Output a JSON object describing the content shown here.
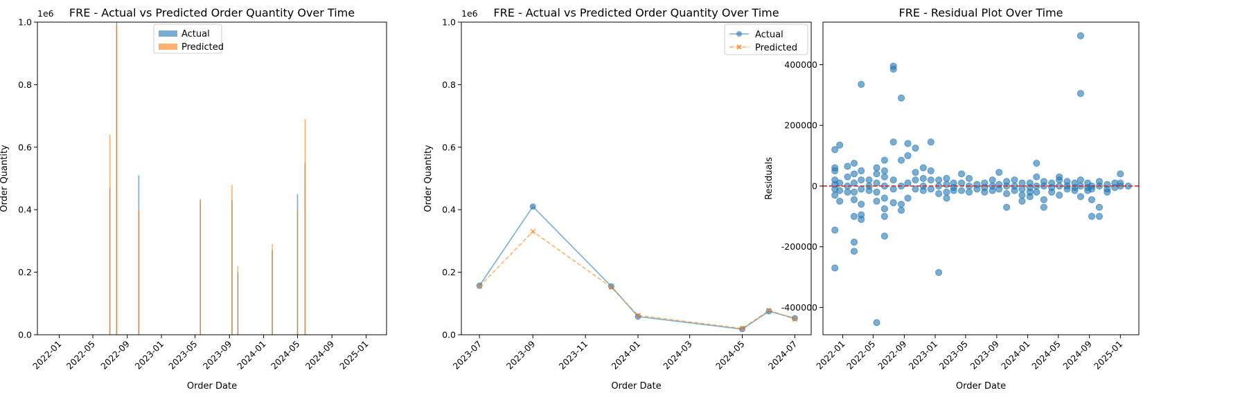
{
  "colors": {
    "actual": "#1f77b4",
    "predicted": "#ff7f0e",
    "zero_line": "#d62728"
  },
  "chart_data": [
    {
      "type": "bar",
      "title": "FRE - Actual vs Predicted Order Quantity Over Time",
      "xlabel": "Order Date",
      "ylabel": "Order Quantity",
      "y_offset_label": "1e6",
      "ylim": [
        0,
        1
      ],
      "yticks": [
        "0.0",
        "0.2",
        "0.4",
        "0.6",
        "0.8",
        "1.0"
      ],
      "xlim": [
        "2021-10-15",
        "2025-03-15"
      ],
      "xticks": [
        "2022-01",
        "2022-05",
        "2022-09",
        "2023-01",
        "2023-05",
        "2023-09",
        "2024-01",
        "2024-05",
        "2024-09",
        "2025-01"
      ],
      "legend_position": "top-center",
      "series": [
        {
          "name": "Actual",
          "points": [
            {
              "x": "2022-07-01",
              "y": 0.47
            },
            {
              "x": "2022-07-25",
              "y": 1.0
            },
            {
              "x": "2022-10-12",
              "y": 0.51
            },
            {
              "x": "2023-05-20",
              "y": 0.43
            },
            {
              "x": "2023-09-10",
              "y": 0.43
            },
            {
              "x": "2023-10-01",
              "y": 0.2
            },
            {
              "x": "2024-02-01",
              "y": 0.27
            },
            {
              "x": "2024-05-01",
              "y": 0.45
            },
            {
              "x": "2024-05-28",
              "y": 0.55
            }
          ]
        },
        {
          "name": "Predicted",
          "points": [
            {
              "x": "2022-07-01",
              "y": 0.64
            },
            {
              "x": "2022-07-25",
              "y": 0.99
            },
            {
              "x": "2022-10-12",
              "y": 0.4
            },
            {
              "x": "2023-05-20",
              "y": 0.435
            },
            {
              "x": "2023-09-10",
              "y": 0.48
            },
            {
              "x": "2023-10-01",
              "y": 0.22
            },
            {
              "x": "2024-02-01",
              "y": 0.29
            },
            {
              "x": "2024-05-01",
              "y": 0.4
            },
            {
              "x": "2024-05-28",
              "y": 0.69
            }
          ]
        }
      ]
    },
    {
      "type": "line",
      "title": "FRE - Actual vs Predicted Order Quantity Over Time",
      "xlabel": "Order Date",
      "ylabel": "Order Quantity",
      "y_offset_label": "1e6",
      "ylim": [
        0,
        1
      ],
      "yticks": [
        "0.0",
        "0.2",
        "0.4",
        "0.6",
        "0.8",
        "1.0"
      ],
      "xlim": [
        "2023-06-10",
        "2024-07-20"
      ],
      "xticks": [
        "2023-07",
        "2023-09",
        "2023-11",
        "2024-01",
        "2024-03",
        "2024-05",
        "2024-07"
      ],
      "legend_position": "top-right",
      "series": [
        {
          "name": "Actual",
          "marker": "circle",
          "points": [
            {
              "x": "2023-07-01",
              "y": 0.157
            },
            {
              "x": "2023-09-01",
              "y": 0.41
            },
            {
              "x": "2023-12-01",
              "y": 0.155
            },
            {
              "x": "2024-01-01",
              "y": 0.058
            },
            {
              "x": "2024-05-01",
              "y": 0.018
            },
            {
              "x": "2024-06-01",
              "y": 0.075
            },
            {
              "x": "2024-07-01",
              "y": 0.053
            }
          ]
        },
        {
          "name": "Predicted",
          "marker": "x",
          "points": [
            {
              "x": "2023-07-01",
              "y": 0.155
            },
            {
              "x": "2023-09-01",
              "y": 0.33
            },
            {
              "x": "2023-12-01",
              "y": 0.152
            },
            {
              "x": "2024-01-01",
              "y": 0.062
            },
            {
              "x": "2024-05-01",
              "y": 0.02
            },
            {
              "x": "2024-06-01",
              "y": 0.078
            },
            {
              "x": "2024-07-01",
              "y": 0.05
            }
          ]
        }
      ]
    },
    {
      "type": "scatter",
      "title": "FRE - Residual Plot Over Time",
      "xlabel": "Order Date",
      "ylabel": "Residuals",
      "ylim": [
        -490000,
        540000
      ],
      "yticks": [
        -400000,
        -200000,
        0,
        200000,
        400000
      ],
      "xlim": [
        "2021-10-15",
        "2025-03-15"
      ],
      "xticks": [
        "2022-01",
        "2022-05",
        "2022-09",
        "2023-01",
        "2023-05",
        "2023-09",
        "2024-01",
        "2024-05",
        "2024-09",
        "2025-01"
      ],
      "reference_line_y": 0,
      "points": [
        {
          "x": "2021-12-01",
          "y": 120000
        },
        {
          "x": "2021-12-01",
          "y": 60000
        },
        {
          "x": "2021-12-01",
          "y": 50000
        },
        {
          "x": "2021-12-01",
          "y": 20000
        },
        {
          "x": "2021-12-01",
          "y": 5000
        },
        {
          "x": "2021-12-01",
          "y": -10000
        },
        {
          "x": "2021-12-01",
          "y": -30000
        },
        {
          "x": "2021-12-01",
          "y": -145000
        },
        {
          "x": "2021-12-01",
          "y": -270000
        },
        {
          "x": "2021-12-20",
          "y": 135000
        },
        {
          "x": "2021-12-20",
          "y": 10000
        },
        {
          "x": "2021-12-20",
          "y": -15000
        },
        {
          "x": "2021-12-20",
          "y": -50000
        },
        {
          "x": "2022-01-20",
          "y": 65000
        },
        {
          "x": "2022-01-20",
          "y": 30000
        },
        {
          "x": "2022-01-20",
          "y": 0
        },
        {
          "x": "2022-01-20",
          "y": -20000
        },
        {
          "x": "2022-02-15",
          "y": 75000
        },
        {
          "x": "2022-02-15",
          "y": 40000
        },
        {
          "x": "2022-02-15",
          "y": 10000
        },
        {
          "x": "2022-02-15",
          "y": -20000
        },
        {
          "x": "2022-02-15",
          "y": -45000
        },
        {
          "x": "2022-02-15",
          "y": -100000
        },
        {
          "x": "2022-02-15",
          "y": -185000
        },
        {
          "x": "2022-02-15",
          "y": -215000
        },
        {
          "x": "2022-03-15",
          "y": 335000
        },
        {
          "x": "2022-03-15",
          "y": 50000
        },
        {
          "x": "2022-03-15",
          "y": 20000
        },
        {
          "x": "2022-03-15",
          "y": -10000
        },
        {
          "x": "2022-03-15",
          "y": -60000
        },
        {
          "x": "2022-03-15",
          "y": -95000
        },
        {
          "x": "2022-03-15",
          "y": -110000
        },
        {
          "x": "2022-04-15",
          "y": 20000
        },
        {
          "x": "2022-04-15",
          "y": 0
        },
        {
          "x": "2022-04-15",
          "y": -15000
        },
        {
          "x": "2022-05-15",
          "y": 60000
        },
        {
          "x": "2022-05-15",
          "y": 40000
        },
        {
          "x": "2022-05-15",
          "y": 10000
        },
        {
          "x": "2022-05-15",
          "y": -20000
        },
        {
          "x": "2022-05-15",
          "y": -50000
        },
        {
          "x": "2022-05-15",
          "y": -450000
        },
        {
          "x": "2022-06-15",
          "y": 85000
        },
        {
          "x": "2022-06-15",
          "y": 50000
        },
        {
          "x": "2022-06-15",
          "y": 30000
        },
        {
          "x": "2022-06-15",
          "y": 0
        },
        {
          "x": "2022-06-15",
          "y": -40000
        },
        {
          "x": "2022-06-15",
          "y": -75000
        },
        {
          "x": "2022-06-15",
          "y": -100000
        },
        {
          "x": "2022-06-15",
          "y": -165000
        },
        {
          "x": "2022-07-20",
          "y": 395000
        },
        {
          "x": "2022-07-20",
          "y": 385000
        },
        {
          "x": "2022-07-20",
          "y": 145000
        },
        {
          "x": "2022-07-20",
          "y": 20000
        },
        {
          "x": "2022-07-20",
          "y": -10000
        },
        {
          "x": "2022-07-20",
          "y": -55000
        },
        {
          "x": "2022-08-20",
          "y": 290000
        },
        {
          "x": "2022-08-20",
          "y": 85000
        },
        {
          "x": "2022-08-20",
          "y": 0
        },
        {
          "x": "2022-08-20",
          "y": -60000
        },
        {
          "x": "2022-08-20",
          "y": -80000
        },
        {
          "x": "2022-09-15",
          "y": 140000
        },
        {
          "x": "2022-09-15",
          "y": 100000
        },
        {
          "x": "2022-09-15",
          "y": 10000
        },
        {
          "x": "2022-09-15",
          "y": -40000
        },
        {
          "x": "2022-10-15",
          "y": 125000
        },
        {
          "x": "2022-10-15",
          "y": 45000
        },
        {
          "x": "2022-10-15",
          "y": 20000
        },
        {
          "x": "2022-10-15",
          "y": -10000
        },
        {
          "x": "2022-11-15",
          "y": 60000
        },
        {
          "x": "2022-11-15",
          "y": 25000
        },
        {
          "x": "2022-11-15",
          "y": 0
        },
        {
          "x": "2022-11-15",
          "y": -15000
        },
        {
          "x": "2022-12-15",
          "y": 145000
        },
        {
          "x": "2022-12-15",
          "y": 50000
        },
        {
          "x": "2022-12-15",
          "y": 20000
        },
        {
          "x": "2022-12-15",
          "y": -10000
        },
        {
          "x": "2023-01-15",
          "y": 20000
        },
        {
          "x": "2023-01-15",
          "y": 0
        },
        {
          "x": "2023-01-15",
          "y": -25000
        },
        {
          "x": "2023-01-15",
          "y": -285000
        },
        {
          "x": "2023-02-15",
          "y": 25000
        },
        {
          "x": "2023-02-15",
          "y": 5000
        },
        {
          "x": "2023-02-15",
          "y": -20000
        },
        {
          "x": "2023-02-15",
          "y": -40000
        },
        {
          "x": "2023-03-15",
          "y": 10000
        },
        {
          "x": "2023-03-15",
          "y": -5000
        },
        {
          "x": "2023-03-15",
          "y": -15000
        },
        {
          "x": "2023-04-15",
          "y": 40000
        },
        {
          "x": "2023-04-15",
          "y": 10000
        },
        {
          "x": "2023-04-15",
          "y": -15000
        },
        {
          "x": "2023-05-15",
          "y": 25000
        },
        {
          "x": "2023-05-15",
          "y": 0
        },
        {
          "x": "2023-05-15",
          "y": -20000
        },
        {
          "x": "2023-06-15",
          "y": 5000
        },
        {
          "x": "2023-06-15",
          "y": -10000
        },
        {
          "x": "2023-07-15",
          "y": 10000
        },
        {
          "x": "2023-07-15",
          "y": -5000
        },
        {
          "x": "2023-07-15",
          "y": -20000
        },
        {
          "x": "2023-08-15",
          "y": 20000
        },
        {
          "x": "2023-08-15",
          "y": 0
        },
        {
          "x": "2023-08-15",
          "y": -15000
        },
        {
          "x": "2023-09-10",
          "y": 45000
        },
        {
          "x": "2023-09-10",
          "y": 5000
        },
        {
          "x": "2023-09-10",
          "y": -10000
        },
        {
          "x": "2023-10-10",
          "y": 15000
        },
        {
          "x": "2023-10-10",
          "y": 0
        },
        {
          "x": "2023-10-10",
          "y": -25000
        },
        {
          "x": "2023-10-10",
          "y": -70000
        },
        {
          "x": "2023-11-10",
          "y": 20000
        },
        {
          "x": "2023-11-10",
          "y": 0
        },
        {
          "x": "2023-11-10",
          "y": -15000
        },
        {
          "x": "2023-12-10",
          "y": 10000
        },
        {
          "x": "2023-12-10",
          "y": -10000
        },
        {
          "x": "2023-12-10",
          "y": -30000
        },
        {
          "x": "2023-12-10",
          "y": -50000
        },
        {
          "x": "2024-01-10",
          "y": 10000
        },
        {
          "x": "2024-01-10",
          "y": -5000
        },
        {
          "x": "2024-01-10",
          "y": -20000
        },
        {
          "x": "2024-01-10",
          "y": -35000
        },
        {
          "x": "2024-02-05",
          "y": 75000
        },
        {
          "x": "2024-02-05",
          "y": 30000
        },
        {
          "x": "2024-02-05",
          "y": 0
        },
        {
          "x": "2024-02-05",
          "y": -20000
        },
        {
          "x": "2024-03-05",
          "y": 15000
        },
        {
          "x": "2024-03-05",
          "y": 0
        },
        {
          "x": "2024-03-05",
          "y": -45000
        },
        {
          "x": "2024-03-05",
          "y": -70000
        },
        {
          "x": "2024-04-05",
          "y": 10000
        },
        {
          "x": "2024-04-05",
          "y": -5000
        },
        {
          "x": "2024-04-05",
          "y": -20000
        },
        {
          "x": "2024-05-05",
          "y": 30000
        },
        {
          "x": "2024-05-05",
          "y": 20000
        },
        {
          "x": "2024-05-05",
          "y": 0
        },
        {
          "x": "2024-05-05",
          "y": -30000
        },
        {
          "x": "2024-06-05",
          "y": 15000
        },
        {
          "x": "2024-06-05",
          "y": 0
        },
        {
          "x": "2024-06-05",
          "y": -10000
        },
        {
          "x": "2024-07-05",
          "y": 10000
        },
        {
          "x": "2024-07-05",
          "y": -5000
        },
        {
          "x": "2024-07-05",
          "y": -15000
        },
        {
          "x": "2024-07-28",
          "y": 495000
        },
        {
          "x": "2024-07-28",
          "y": 305000
        },
        {
          "x": "2024-07-28",
          "y": 20000
        },
        {
          "x": "2024-07-28",
          "y": 0
        },
        {
          "x": "2024-07-28",
          "y": -35000
        },
        {
          "x": "2024-08-25",
          "y": 10000
        },
        {
          "x": "2024-08-25",
          "y": -5000
        },
        {
          "x": "2024-08-25",
          "y": -15000
        },
        {
          "x": "2024-09-10",
          "y": 0
        },
        {
          "x": "2024-09-10",
          "y": -10000
        },
        {
          "x": "2024-09-10",
          "y": -45000
        },
        {
          "x": "2024-09-10",
          "y": -100000
        },
        {
          "x": "2024-10-10",
          "y": 15000
        },
        {
          "x": "2024-10-10",
          "y": 0
        },
        {
          "x": "2024-10-10",
          "y": -70000
        },
        {
          "x": "2024-10-10",
          "y": -100000
        },
        {
          "x": "2024-11-10",
          "y": 5000
        },
        {
          "x": "2024-11-10",
          "y": -10000
        },
        {
          "x": "2024-11-10",
          "y": -20000
        },
        {
          "x": "2024-12-10",
          "y": 10000
        },
        {
          "x": "2024-12-10",
          "y": -5000
        },
        {
          "x": "2025-01-01",
          "y": 40000
        },
        {
          "x": "2025-01-01",
          "y": 10000
        },
        {
          "x": "2025-01-01",
          "y": 0
        },
        {
          "x": "2025-02-01",
          "y": 0
        }
      ]
    }
  ]
}
